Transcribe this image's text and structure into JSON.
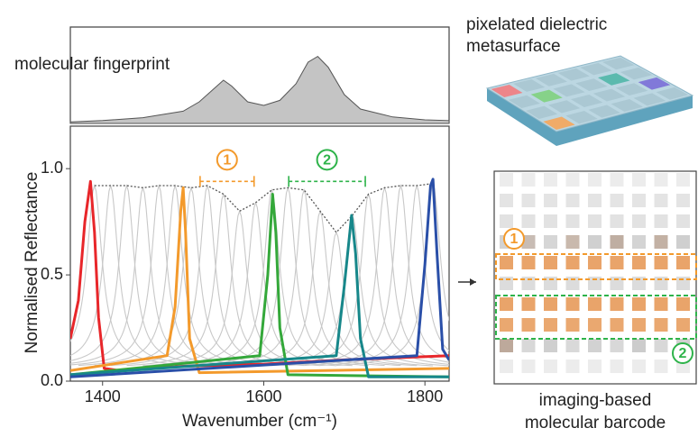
{
  "chart_data": {
    "type": "line",
    "xlabel": "Wavenumber (cm⁻¹)",
    "ylabel": "Normalised Reflectance",
    "xlim": [
      1360,
      1830
    ],
    "ylim": [
      0,
      1.2
    ],
    "xticks": [
      1400,
      1600,
      1800
    ],
    "yticks": [
      {
        "value": 0,
        "label": "0.0"
      },
      0.5,
      {
        "value": 1,
        "label": "1.0"
      }
    ],
    "fingerprint": {
      "label": "molecular fingerprint",
      "color": "#c4c4c4",
      "x": [
        1360,
        1400,
        1450,
        1500,
        1520,
        1540,
        1550,
        1560,
        1580,
        1600,
        1620,
        1640,
        1655,
        1667,
        1680,
        1700,
        1720,
        1760,
        1800,
        1830
      ],
      "values": [
        0.02,
        0.04,
        0.08,
        0.17,
        0.3,
        0.5,
        0.6,
        0.52,
        0.3,
        0.25,
        0.32,
        0.55,
        0.85,
        0.93,
        0.78,
        0.4,
        0.2,
        0.09,
        0.05,
        0.04
      ]
    },
    "resonances": {
      "color": "#c8c8c8",
      "envelope_color": "#555555",
      "centers": [
        1390,
        1410,
        1430,
        1450,
        1470,
        1490,
        1510,
        1530,
        1550,
        1570,
        1590,
        1610,
        1630,
        1650,
        1670,
        1690,
        1710,
        1730,
        1750,
        1770,
        1790,
        1810
      ],
      "peaks": [
        0.92,
        0.92,
        0.92,
        0.91,
        0.92,
        0.92,
        0.91,
        0.92,
        0.88,
        0.8,
        0.84,
        0.9,
        0.91,
        0.9,
        0.8,
        0.7,
        0.78,
        0.88,
        0.91,
        0.92,
        0.92,
        0.93
      ]
    },
    "series": [
      {
        "color": "#e8262a",
        "x": [
          1360,
          1370,
          1378,
          1385,
          1390,
          1395,
          1402,
          1420,
          1500,
          1600,
          1700,
          1830
        ],
        "values": [
          0.2,
          0.38,
          0.75,
          0.94,
          0.7,
          0.3,
          0.06,
          0.05,
          0.07,
          0.08,
          0.1,
          0.12
        ]
      },
      {
        "color": "#f39a2c",
        "x": [
          1360,
          1480,
          1490,
          1497,
          1500,
          1503,
          1508,
          1520,
          1830
        ],
        "values": [
          0.05,
          0.12,
          0.35,
          0.8,
          0.91,
          0.7,
          0.2,
          0.04,
          0.06
        ]
      },
      {
        "color": "#34a83a",
        "x": [
          1360,
          1595,
          1605,
          1611,
          1615,
          1620,
          1630,
          1830
        ],
        "values": [
          0.03,
          0.12,
          0.5,
          0.88,
          0.7,
          0.25,
          0.03,
          0.02
        ]
      },
      {
        "color": "#17878a",
        "x": [
          1360,
          1690,
          1700,
          1709,
          1714,
          1720,
          1730,
          1830
        ],
        "values": [
          0.03,
          0.12,
          0.45,
          0.78,
          0.6,
          0.2,
          0.02,
          0.02
        ]
      },
      {
        "color": "#2a4fa8",
        "x": [
          1360,
          1790,
          1800,
          1807,
          1810,
          1815,
          1822,
          1830
        ],
        "values": [
          0.02,
          0.12,
          0.55,
          0.92,
          0.95,
          0.6,
          0.15,
          0.1
        ]
      }
    ],
    "annotations": [
      {
        "text": "1",
        "color": "#f39a2c",
        "range": [
          1521,
          1588
        ],
        "y": 0.94
      },
      {
        "text": "2",
        "color": "#2eb34a",
        "range": [
          1631,
          1726
        ],
        "y": 0.94
      }
    ],
    "metasurface": {
      "label": [
        "pixelated dielectric",
        "metasurface"
      ]
    },
    "barcode": {
      "label": [
        "imaging-based",
        "molecular barcode"
      ],
      "markers": [
        "1",
        "2"
      ]
    }
  }
}
